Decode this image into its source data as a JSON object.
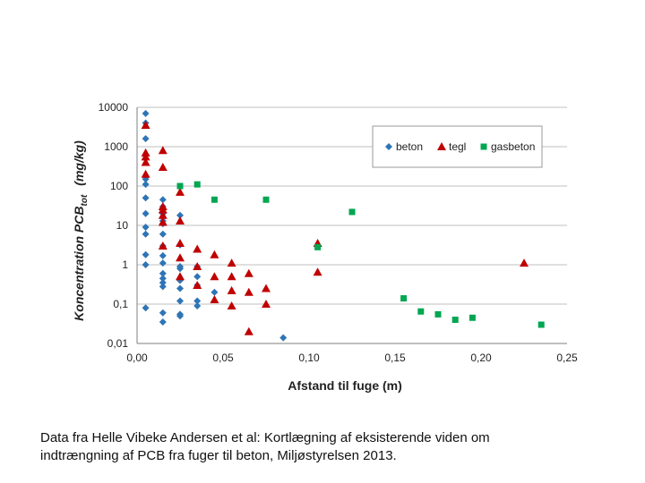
{
  "chart_data": {
    "type": "scatter",
    "xlabel": "Afstand til fuge  (m)",
    "ylabel_main": "Koncentration PCB",
    "ylabel_sub": "tot",
    "ylabel_unit": "(mg/kg)",
    "y_scale": "log",
    "xlim": [
      0,
      0.25
    ],
    "ylim": [
      0.01,
      10000
    ],
    "x_ticks": [
      "0,00",
      "0,05",
      "0,10",
      "0,15",
      "0,20",
      "0,25"
    ],
    "x_tick_values": [
      0,
      0.05,
      0.1,
      0.15,
      0.2,
      0.25
    ],
    "y_ticks": [
      "0,01",
      "0,1",
      "1",
      "10",
      "100",
      "1000",
      "10000"
    ],
    "y_tick_values": [
      0.01,
      0.1,
      1,
      10,
      100,
      1000,
      10000
    ],
    "grid": "horizontal",
    "legend_position": "top-right",
    "series": [
      {
        "name": "beton",
        "marker": "diamond",
        "color": "#2e75b6",
        "points": [
          [
            0.005,
            7000
          ],
          [
            0.005,
            4000
          ],
          [
            0.005,
            1600
          ],
          [
            0.005,
            500
          ],
          [
            0.005,
            150
          ],
          [
            0.005,
            110
          ],
          [
            0.005,
            50
          ],
          [
            0.005,
            20
          ],
          [
            0.005,
            9
          ],
          [
            0.005,
            6
          ],
          [
            0.005,
            1.8
          ],
          [
            0.005,
            1.0
          ],
          [
            0.005,
            0.08
          ],
          [
            0.015,
            45
          ],
          [
            0.015,
            30
          ],
          [
            0.015,
            20
          ],
          [
            0.015,
            13
          ],
          [
            0.015,
            11
          ],
          [
            0.015,
            6
          ],
          [
            0.015,
            3
          ],
          [
            0.015,
            1.7
          ],
          [
            0.015,
            1.1
          ],
          [
            0.015,
            0.6
          ],
          [
            0.015,
            0.45
          ],
          [
            0.015,
            0.35
          ],
          [
            0.015,
            0.28
          ],
          [
            0.015,
            0.06
          ],
          [
            0.015,
            0.035
          ],
          [
            0.025,
            18
          ],
          [
            0.025,
            3.2
          ],
          [
            0.025,
            0.9
          ],
          [
            0.025,
            0.8
          ],
          [
            0.025,
            0.4
          ],
          [
            0.025,
            0.25
          ],
          [
            0.025,
            0.12
          ],
          [
            0.025,
            0.055
          ],
          [
            0.025,
            0.05
          ],
          [
            0.035,
            0.9
          ],
          [
            0.035,
            0.5
          ],
          [
            0.035,
            0.3
          ],
          [
            0.035,
            0.12
          ],
          [
            0.035,
            0.09
          ],
          [
            0.045,
            0.2
          ],
          [
            0.085,
            0.014
          ]
        ]
      },
      {
        "name": "tegl",
        "marker": "triangle",
        "color": "#c00000",
        "points": [
          [
            0.005,
            3500
          ],
          [
            0.005,
            700
          ],
          [
            0.005,
            550
          ],
          [
            0.005,
            400
          ],
          [
            0.005,
            200
          ],
          [
            0.015,
            800
          ],
          [
            0.015,
            300
          ],
          [
            0.015,
            30
          ],
          [
            0.015,
            25
          ],
          [
            0.015,
            18
          ],
          [
            0.015,
            12
          ],
          [
            0.015,
            3
          ],
          [
            0.025,
            70
          ],
          [
            0.025,
            13
          ],
          [
            0.025,
            3.5
          ],
          [
            0.025,
            1.5
          ],
          [
            0.025,
            0.5
          ],
          [
            0.035,
            2.5
          ],
          [
            0.035,
            0.9
          ],
          [
            0.035,
            0.3
          ],
          [
            0.045,
            1.8
          ],
          [
            0.045,
            0.5
          ],
          [
            0.045,
            0.13
          ],
          [
            0.055,
            1.1
          ],
          [
            0.055,
            0.5
          ],
          [
            0.055,
            0.22
          ],
          [
            0.055,
            0.09
          ],
          [
            0.065,
            0.6
          ],
          [
            0.065,
            0.2
          ],
          [
            0.065,
            0.02
          ],
          [
            0.075,
            0.25
          ],
          [
            0.075,
            0.1
          ],
          [
            0.105,
            3.5
          ],
          [
            0.105,
            0.65
          ],
          [
            0.225,
            1.1
          ]
        ]
      },
      {
        "name": "gasbeton",
        "marker": "square",
        "color": "#00a651",
        "points": [
          [
            0.025,
            100
          ],
          [
            0.035,
            110
          ],
          [
            0.045,
            45
          ],
          [
            0.075,
            45
          ],
          [
            0.105,
            2.8
          ],
          [
            0.125,
            22
          ],
          [
            0.155,
            0.14
          ],
          [
            0.165,
            0.065
          ],
          [
            0.175,
            0.055
          ],
          [
            0.185,
            0.04
          ],
          [
            0.195,
            0.045
          ],
          [
            0.235,
            0.03
          ]
        ]
      }
    ]
  },
  "caption": {
    "line1": "Data fra Helle Vibeke Andersen et al: Kortlægning af eksisterende viden om",
    "line2": "indtrængning af PCB fra fuger til beton, Miljøstyrelsen 2013."
  }
}
